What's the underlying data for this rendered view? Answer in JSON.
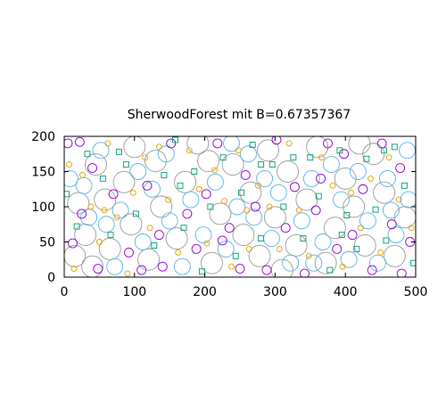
{
  "chart_data": {
    "type": "scatter",
    "title": "SherwoodForest mit B=0.67357367",
    "xlabel": "",
    "ylabel": "",
    "xlim": [
      0,
      500
    ],
    "ylim": [
      0,
      200
    ],
    "x_ticks": [
      0,
      100,
      200,
      300,
      400,
      500
    ],
    "y_ticks": [
      0,
      50,
      100,
      150,
      200
    ],
    "grid": false,
    "legend": "none",
    "marker": "open-circle",
    "series": [
      {
        "color": "#9a9a9a",
        "radius": 12,
        "points": [
          [
            15,
            30
          ],
          [
            20,
            105
          ],
          [
            30,
            60
          ],
          [
            45,
            160
          ],
          [
            58,
            110
          ],
          [
            65,
            40
          ],
          [
            85,
            135
          ],
          [
            95,
            75
          ],
          [
            120,
            25
          ],
          [
            130,
            165
          ],
          [
            138,
            100
          ],
          [
            160,
            55
          ],
          [
            172,
            135
          ],
          [
            190,
            190
          ],
          [
            210,
            20
          ],
          [
            222,
            90
          ],
          [
            240,
            160
          ],
          [
            255,
            60
          ],
          [
            265,
            120
          ],
          [
            278,
            30
          ],
          [
            290,
            180
          ],
          [
            300,
            85
          ],
          [
            318,
            150
          ],
          [
            330,
            45
          ],
          [
            345,
            110
          ],
          [
            360,
            185
          ],
          [
            372,
            20
          ],
          [
            385,
            70
          ],
          [
            400,
            140
          ],
          [
            412,
            100
          ],
          [
            428,
            45
          ],
          [
            440,
            175
          ],
          [
            455,
            120
          ],
          [
            470,
            30
          ],
          [
            485,
            85
          ],
          [
            40,
            15
          ],
          [
            100,
            185
          ],
          [
            205,
            165
          ],
          [
            310,
            10
          ],
          [
            420,
            190
          ]
        ]
      },
      {
        "color": "#56b4e9",
        "radius": 9,
        "points": [
          [
            8,
            140
          ],
          [
            28,
            130
          ],
          [
            35,
            85
          ],
          [
            52,
            180
          ],
          [
            72,
            15
          ],
          [
            80,
            95
          ],
          [
            105,
            150
          ],
          [
            112,
            50
          ],
          [
            145,
            175
          ],
          [
            150,
            80
          ],
          [
            168,
            15
          ],
          [
            180,
            110
          ],
          [
            198,
            60
          ],
          [
            215,
            135
          ],
          [
            230,
            40
          ],
          [
            246,
            100
          ],
          [
            262,
            175
          ],
          [
            270,
            85
          ],
          [
            285,
            140
          ],
          [
            295,
            55
          ],
          [
            305,
            120
          ],
          [
            322,
            20
          ],
          [
            338,
            80
          ],
          [
            352,
            140
          ],
          [
            368,
            50
          ],
          [
            380,
            160
          ],
          [
            394,
            110
          ],
          [
            405,
            25
          ],
          [
            418,
            150
          ],
          [
            432,
            80
          ],
          [
            446,
            20
          ],
          [
            460,
            140
          ],
          [
            472,
            60
          ],
          [
            488,
            180
          ],
          [
            490,
            110
          ],
          [
            60,
            75
          ],
          [
            125,
            125
          ],
          [
            238,
            190
          ],
          [
            355,
            20
          ],
          [
            465,
            95
          ]
        ]
      },
      {
        "color": "#9400d3",
        "radius": 5,
        "points": [
          [
            5,
            190
          ],
          [
            22,
            192
          ],
          [
            40,
            155
          ],
          [
            12,
            48
          ],
          [
            25,
            90
          ],
          [
            48,
            12
          ],
          [
            70,
            118
          ],
          [
            92,
            35
          ],
          [
            110,
            10
          ],
          [
            118,
            130
          ],
          [
            135,
            60
          ],
          [
            152,
            190
          ],
          [
            175,
            90
          ],
          [
            188,
            40
          ],
          [
            202,
            118
          ],
          [
            218,
            190
          ],
          [
            235,
            70
          ],
          [
            250,
            12
          ],
          [
            258,
            145
          ],
          [
            272,
            100
          ],
          [
            288,
            10
          ],
          [
            302,
            195
          ],
          [
            315,
            70
          ],
          [
            328,
            128
          ],
          [
            342,
            5
          ],
          [
            358,
            95
          ],
          [
            375,
            190
          ],
          [
            388,
            40
          ],
          [
            398,
            175
          ],
          [
            410,
            60
          ],
          [
            425,
            125
          ],
          [
            438,
            10
          ],
          [
            452,
            190
          ],
          [
            466,
            75
          ],
          [
            478,
            155
          ],
          [
            492,
            50
          ],
          [
            140,
            15
          ],
          [
            225,
            52
          ],
          [
            365,
            140
          ],
          [
            480,
            5
          ]
        ]
      },
      {
        "color": "#009e73",
        "radius": 3,
        "shape": "square",
        "points": [
          [
            3,
            118
          ],
          [
            18,
            72
          ],
          [
            33,
            175
          ],
          [
            55,
            140
          ],
          [
            66,
            60
          ],
          [
            88,
            160
          ],
          [
            102,
            90
          ],
          [
            128,
            45
          ],
          [
            142,
            145
          ],
          [
            158,
            195
          ],
          [
            170,
            70
          ],
          [
            185,
            150
          ],
          [
            196,
            8
          ],
          [
            208,
            100
          ],
          [
            226,
            170
          ],
          [
            244,
            30
          ],
          [
            252,
            120
          ],
          [
            268,
            188
          ],
          [
            280,
            55
          ],
          [
            296,
            160
          ],
          [
            312,
            100
          ],
          [
            326,
            170
          ],
          [
            340,
            55
          ],
          [
            350,
            170
          ],
          [
            362,
            115
          ],
          [
            378,
            10
          ],
          [
            392,
            180
          ],
          [
            402,
            88
          ],
          [
            416,
            40
          ],
          [
            430,
            168
          ],
          [
            443,
            96
          ],
          [
            458,
            52
          ],
          [
            470,
            185
          ],
          [
            484,
            130
          ],
          [
            497,
            20
          ],
          [
            78,
            178
          ],
          [
            165,
            130
          ],
          [
            280,
            160
          ],
          [
            395,
            60
          ],
          [
            455,
            180
          ]
        ]
      },
      {
        "color": "#e69f00",
        "radius": 3,
        "points": [
          [
            7,
            160
          ],
          [
            14,
            12
          ],
          [
            26,
            145
          ],
          [
            38,
            100
          ],
          [
            50,
            50
          ],
          [
            62,
            190
          ],
          [
            75,
            85
          ],
          [
            90,
            5
          ],
          [
            98,
            120
          ],
          [
            115,
            170
          ],
          [
            122,
            70
          ],
          [
            135,
            185
          ],
          [
            148,
            110
          ],
          [
            162,
            35
          ],
          [
            178,
            180
          ],
          [
            192,
            125
          ],
          [
            203,
            48
          ],
          [
            214,
            152
          ],
          [
            228,
            108
          ],
          [
            238,
            15
          ],
          [
            248,
            180
          ],
          [
            263,
            40
          ],
          [
            276,
            130
          ],
          [
            292,
            100
          ],
          [
            306,
            40
          ],
          [
            320,
            190
          ],
          [
            334,
            95
          ],
          [
            348,
            30
          ],
          [
            366,
            170
          ],
          [
            382,
            130
          ],
          [
            396,
            15
          ],
          [
            408,
            120
          ],
          [
            422,
            70
          ],
          [
            436,
            140
          ],
          [
            450,
            35
          ],
          [
            462,
            170
          ],
          [
            476,
            110
          ],
          [
            494,
            70
          ],
          [
            57,
            95
          ],
          [
            260,
            95
          ]
        ]
      }
    ]
  }
}
